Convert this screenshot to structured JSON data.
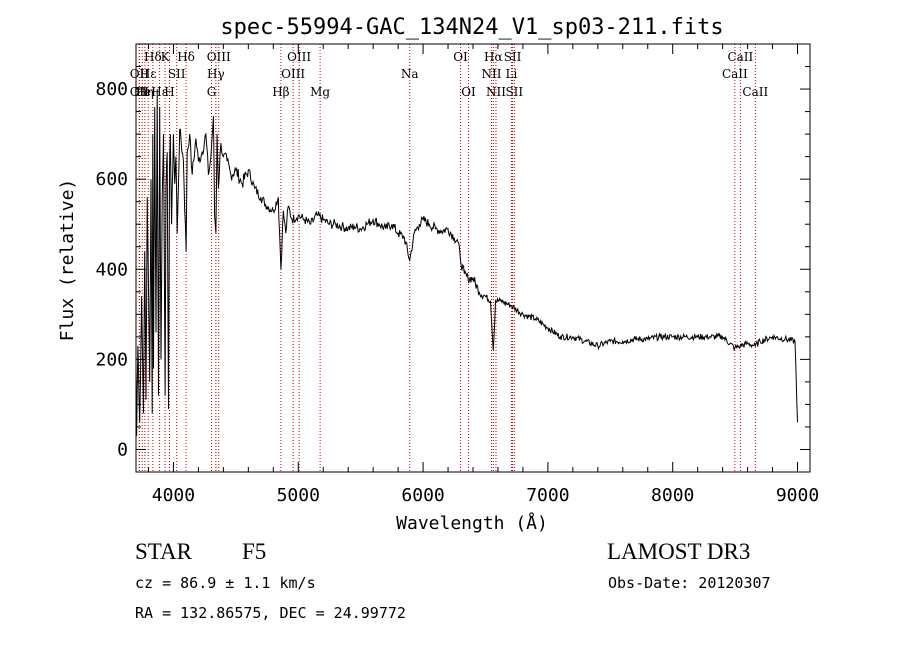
{
  "chart_data": {
    "type": "line",
    "title": "spec-55994-GAC_134N24_V1_sp03-211.fits",
    "xlabel": "Wavelength (Å)",
    "ylabel": "Flux (relative)",
    "xlim": [
      3700,
      9100
    ],
    "ylim": [
      -50,
      900
    ],
    "xticks": [
      4000,
      5000,
      6000,
      7000,
      8000,
      9000
    ],
    "xtick_labels": [
      "4000",
      "5000",
      "6000",
      "7000",
      "8000",
      "9000"
    ],
    "yticks": [
      0,
      200,
      400,
      600,
      800
    ],
    "ytick_labels": [
      "0",
      "200",
      "400",
      "600",
      "800"
    ],
    "series": [
      {
        "name": "spectrum",
        "x": [
          3700,
          3705,
          3715,
          3730,
          3745,
          3760,
          3770,
          3780,
          3790,
          3800,
          3810,
          3820,
          3830,
          3835,
          3840,
          3850,
          3860,
          3870,
          3880,
          3890,
          3900,
          3910,
          3920,
          3933,
          3940,
          3950,
          3960,
          3968,
          3975,
          3985,
          4000,
          4010,
          4020,
          4030,
          4050,
          4080,
          4101,
          4110,
          4130,
          4150,
          4180,
          4200,
          4230,
          4260,
          4280,
          4300,
          4320,
          4330,
          4340,
          4350,
          4360,
          4380,
          4400,
          4430,
          4460,
          4500,
          4550,
          4600,
          4650,
          4700,
          4750,
          4800,
          4840,
          4861,
          4880,
          4900,
          4920,
          4950,
          5000,
          5050,
          5100,
          5150,
          5200,
          5250,
          5300,
          5350,
          5400,
          5450,
          5500,
          5550,
          5600,
          5650,
          5700,
          5750,
          5800,
          5850,
          5893,
          5930,
          5970,
          6000,
          6050,
          6100,
          6150,
          6200,
          6250,
          6280,
          6300,
          6330,
          6360,
          6400,
          6450,
          6500,
          6540,
          6563,
          6580,
          6620,
          6700,
          6800,
          6900,
          7000,
          7100,
          7200,
          7300,
          7400,
          7500,
          7600,
          7700,
          7800,
          7900,
          8000,
          8100,
          8200,
          8300,
          8400,
          8498,
          8542,
          8600,
          8662,
          8700,
          8800,
          8900,
          8980,
          9000
        ],
        "values": [
          190,
          30,
          230,
          60,
          340,
          80,
          440,
          110,
          560,
          360,
          150,
          600,
          80,
          700,
          180,
          760,
          260,
          800,
          120,
          760,
          200,
          560,
          700,
          120,
          580,
          660,
          90,
          620,
          700,
          500,
          700,
          590,
          650,
          480,
          710,
          640,
          440,
          660,
          700,
          610,
          690,
          640,
          660,
          700,
          610,
          650,
          740,
          520,
          480,
          700,
          580,
          680,
          650,
          640,
          610,
          620,
          590,
          620,
          580,
          560,
          540,
          530,
          560,
          400,
          530,
          480,
          540,
          510,
          520,
          510,
          500,
          520,
          510,
          500,
          500,
          495,
          490,
          495,
          490,
          500,
          510,
          500,
          490,
          500,
          480,
          470,
          420,
          480,
          500,
          510,
          500,
          490,
          485,
          490,
          470,
          460,
          420,
          390,
          380,
          380,
          350,
          340,
          330,
          220,
          330,
          330,
          320,
          300,
          290,
          270,
          250,
          250,
          240,
          230,
          240,
          240,
          245,
          245,
          250,
          250,
          250,
          250,
          250,
          250,
          225,
          230,
          235,
          230,
          240,
          250,
          245,
          240,
          60
        ]
      }
    ],
    "lines": [
      {
        "wave": 3727,
        "label": "OII",
        "row": 2
      },
      {
        "wave": 3727,
        "label": "OII",
        "row": 3
      },
      {
        "wave": 3750,
        "label": "He",
        "row": 3
      },
      {
        "wave": 3771,
        "label": "Hη",
        "row": 3
      },
      {
        "wave": 3798,
        "label": "Hε",
        "row": 2
      },
      {
        "wave": 3835,
        "label": "Hδ",
        "row": 1
      },
      {
        "wave": 3889,
        "label": "Hε",
        "row": 3
      },
      {
        "wave": 3933,
        "label": "K",
        "row": 1
      },
      {
        "wave": 3968,
        "label": "H",
        "row": 3
      },
      {
        "wave": 4026,
        "label": "SII",
        "row": 2
      },
      {
        "wave": 4101,
        "label": "Hδ",
        "row": 1
      },
      {
        "wave": 4305,
        "label": "G",
        "row": 3
      },
      {
        "wave": 4340,
        "label": "Hγ",
        "row": 2
      },
      {
        "wave": 4363,
        "label": "OIII",
        "row": 1
      },
      {
        "wave": 4861,
        "label": "Hβ",
        "row": 3
      },
      {
        "wave": 4959,
        "label": "OIII",
        "row": 2
      },
      {
        "wave": 5007,
        "label": "OIII",
        "row": 1
      },
      {
        "wave": 5175,
        "label": "Mg",
        "row": 3
      },
      {
        "wave": 5893,
        "label": "Na",
        "row": 2
      },
      {
        "wave": 6300,
        "label": "OI",
        "row": 1
      },
      {
        "wave": 6364,
        "label": "OI",
        "row": 3
      },
      {
        "wave": 6548,
        "label": "NII",
        "row": 2
      },
      {
        "wave": 6563,
        "label": "Hα",
        "row": 1
      },
      {
        "wave": 6584,
        "label": "NII",
        "row": 3
      },
      {
        "wave": 6708,
        "label": "Li",
        "row": 2
      },
      {
        "wave": 6717,
        "label": "SII",
        "row": 1
      },
      {
        "wave": 6731,
        "label": "SII",
        "row": 3
      },
      {
        "wave": 8498,
        "label": "CaII",
        "row": 2
      },
      {
        "wave": 8542,
        "label": "CaII",
        "row": 1
      },
      {
        "wave": 8662,
        "label": "CaII",
        "row": 3
      }
    ],
    "line_color": "#c00000"
  },
  "info": {
    "class": "STAR",
    "subclass": "F5",
    "survey": "LAMOST DR3",
    "cz": "cz = 86.9 ± 1.1 km/s",
    "obs_date": "Obs-Date: 20120307",
    "coords": "RA = 132.86575, DEC =  24.99772"
  }
}
